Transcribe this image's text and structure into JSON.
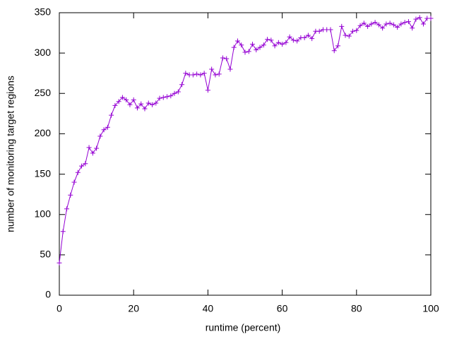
{
  "chart_data": {
    "type": "line",
    "xlabel": "runtime (percent)",
    "ylabel": "number of monitoring target regions",
    "x": [
      0,
      1,
      2,
      3,
      4,
      5,
      6,
      7,
      8,
      9,
      10,
      11,
      12,
      13,
      14,
      15,
      16,
      17,
      18,
      19,
      20,
      21,
      22,
      23,
      24,
      25,
      26,
      27,
      28,
      29,
      30,
      31,
      32,
      33,
      34,
      35,
      36,
      37,
      38,
      39,
      40,
      41,
      42,
      43,
      44,
      45,
      46,
      47,
      48,
      49,
      50,
      51,
      52,
      53,
      54,
      55,
      56,
      57,
      58,
      59,
      60,
      61,
      62,
      63,
      64,
      65,
      66,
      67,
      68,
      69,
      70,
      71,
      72,
      73,
      74,
      75,
      76,
      77,
      78,
      79,
      80,
      81,
      82,
      83,
      84,
      85,
      86,
      87,
      88,
      89,
      90,
      91,
      92,
      93,
      94,
      95,
      96,
      97,
      98,
      99,
      100
    ],
    "values": [
      40,
      79,
      107,
      124,
      140,
      152,
      160,
      163,
      183,
      176,
      182,
      197,
      205,
      208,
      223,
      235,
      240,
      245,
      242,
      236,
      242,
      232,
      237,
      231,
      238,
      236,
      238,
      244,
      245,
      246,
      247,
      250,
      252,
      261,
      275,
      273,
      273,
      274,
      273,
      275,
      254,
      280,
      273,
      274,
      294,
      293,
      280,
      307,
      315,
      310,
      301,
      302,
      311,
      304,
      307,
      310,
      317,
      316,
      309,
      313,
      311,
      313,
      320,
      316,
      315,
      319,
      319,
      322,
      318,
      327,
      327,
      329,
      329,
      329,
      303,
      309,
      333,
      322,
      321,
      327,
      328,
      334,
      337,
      333,
      336,
      338,
      335,
      331,
      336,
      337,
      335,
      332,
      336,
      338,
      339,
      331,
      342,
      344,
      336,
      343,
      343
    ],
    "color": "#9400d3",
    "xlim": [
      0,
      100
    ],
    "xticks": [
      0,
      20,
      40,
      60,
      80,
      100
    ],
    "ylim": [
      0,
      350
    ],
    "yticks": [
      0,
      50,
      100,
      150,
      200,
      250,
      300,
      350
    ]
  }
}
